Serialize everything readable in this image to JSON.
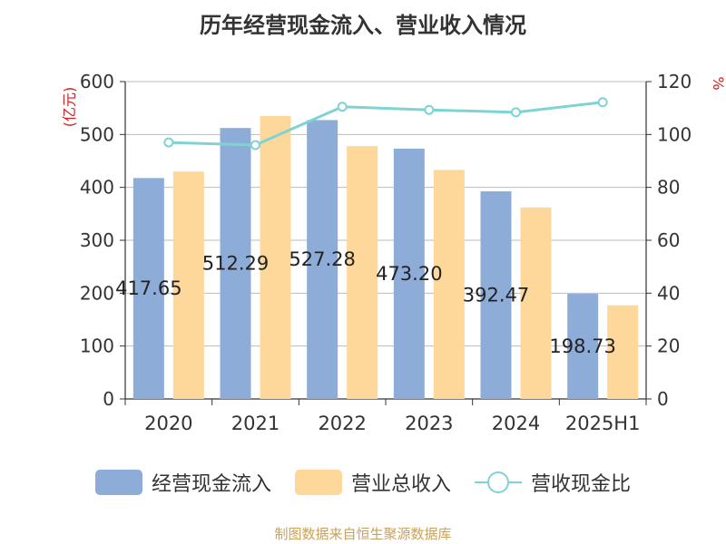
{
  "title": "历年经营现金流入、营业收入情况",
  "footer": "制图数据来自恒生聚源数据库",
  "colors": {
    "cash_inflow": "#8eacd8",
    "revenue": "#fdd89a",
    "ratio_line": "#7fd3d5",
    "unit_text": "#d02020",
    "axis": "#333333",
    "grid": "#bbbbbb"
  },
  "chart_data": {
    "type": "bar",
    "title": "历年经营现金流入、营业收入情况",
    "categories": [
      "2020",
      "2021",
      "2022",
      "2023",
      "2024",
      "2025H1"
    ],
    "y_left_label": "(亿元)",
    "y_right_label": "%",
    "y_left_ticks": [
      "0",
      "100",
      "200",
      "300",
      "400",
      "500",
      "600"
    ],
    "y_right_ticks": [
      "0",
      "20",
      "40",
      "60",
      "80",
      "100",
      "120"
    ],
    "ylim_left": [
      0,
      600
    ],
    "ylim_right": [
      0,
      120
    ],
    "grid": true,
    "legend_position": "bottom",
    "series": [
      {
        "name": "经营现金流入",
        "kind": "bar",
        "axis": "left",
        "values": [
          417.65,
          512.29,
          527.28,
          473.2,
          392.47,
          198.73
        ],
        "labels": [
          "417.65",
          "512.29",
          "527.28",
          "473.20",
          "392.47",
          "198.73"
        ]
      },
      {
        "name": "营业总收入",
        "kind": "bar",
        "axis": "left",
        "values": [
          430,
          535,
          478,
          433,
          362,
          177
        ]
      },
      {
        "name": "营收现金比",
        "kind": "line",
        "axis": "right",
        "values": [
          97,
          96,
          110.5,
          109.3,
          108.4,
          112.2
        ]
      }
    ]
  }
}
